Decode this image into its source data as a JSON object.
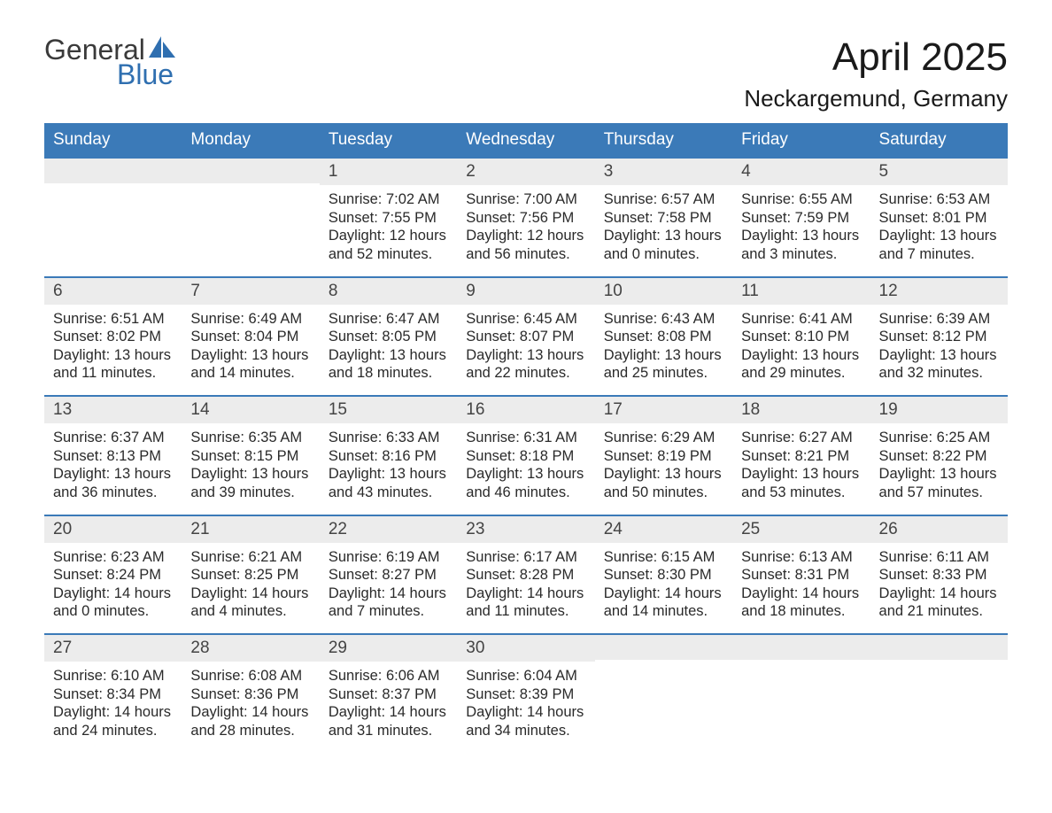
{
  "logo": {
    "top_text": "General",
    "bottom_text": "Blue",
    "icon_color": "#2f6fb0"
  },
  "title": "April 2025",
  "location": "Neckargemund, Germany",
  "colors": {
    "header_bg": "#3b7ab8",
    "header_text": "#ffffff",
    "daynum_bg": "#ececec",
    "row_border": "#3b7ab8",
    "text": "#2a2a2a",
    "background": "#ffffff"
  },
  "weekdays": [
    "Sunday",
    "Monday",
    "Tuesday",
    "Wednesday",
    "Thursday",
    "Friday",
    "Saturday"
  ],
  "weeks": [
    [
      {
        "day": "",
        "sunrise": "",
        "sunset": "",
        "daylight1": "",
        "daylight2": ""
      },
      {
        "day": "",
        "sunrise": "",
        "sunset": "",
        "daylight1": "",
        "daylight2": ""
      },
      {
        "day": "1",
        "sunrise": "Sunrise: 7:02 AM",
        "sunset": "Sunset: 7:55 PM",
        "daylight1": "Daylight: 12 hours",
        "daylight2": "and 52 minutes."
      },
      {
        "day": "2",
        "sunrise": "Sunrise: 7:00 AM",
        "sunset": "Sunset: 7:56 PM",
        "daylight1": "Daylight: 12 hours",
        "daylight2": "and 56 minutes."
      },
      {
        "day": "3",
        "sunrise": "Sunrise: 6:57 AM",
        "sunset": "Sunset: 7:58 PM",
        "daylight1": "Daylight: 13 hours",
        "daylight2": "and 0 minutes."
      },
      {
        "day": "4",
        "sunrise": "Sunrise: 6:55 AM",
        "sunset": "Sunset: 7:59 PM",
        "daylight1": "Daylight: 13 hours",
        "daylight2": "and 3 minutes."
      },
      {
        "day": "5",
        "sunrise": "Sunrise: 6:53 AM",
        "sunset": "Sunset: 8:01 PM",
        "daylight1": "Daylight: 13 hours",
        "daylight2": "and 7 minutes."
      }
    ],
    [
      {
        "day": "6",
        "sunrise": "Sunrise: 6:51 AM",
        "sunset": "Sunset: 8:02 PM",
        "daylight1": "Daylight: 13 hours",
        "daylight2": "and 11 minutes."
      },
      {
        "day": "7",
        "sunrise": "Sunrise: 6:49 AM",
        "sunset": "Sunset: 8:04 PM",
        "daylight1": "Daylight: 13 hours",
        "daylight2": "and 14 minutes."
      },
      {
        "day": "8",
        "sunrise": "Sunrise: 6:47 AM",
        "sunset": "Sunset: 8:05 PM",
        "daylight1": "Daylight: 13 hours",
        "daylight2": "and 18 minutes."
      },
      {
        "day": "9",
        "sunrise": "Sunrise: 6:45 AM",
        "sunset": "Sunset: 8:07 PM",
        "daylight1": "Daylight: 13 hours",
        "daylight2": "and 22 minutes."
      },
      {
        "day": "10",
        "sunrise": "Sunrise: 6:43 AM",
        "sunset": "Sunset: 8:08 PM",
        "daylight1": "Daylight: 13 hours",
        "daylight2": "and 25 minutes."
      },
      {
        "day": "11",
        "sunrise": "Sunrise: 6:41 AM",
        "sunset": "Sunset: 8:10 PM",
        "daylight1": "Daylight: 13 hours",
        "daylight2": "and 29 minutes."
      },
      {
        "day": "12",
        "sunrise": "Sunrise: 6:39 AM",
        "sunset": "Sunset: 8:12 PM",
        "daylight1": "Daylight: 13 hours",
        "daylight2": "and 32 minutes."
      }
    ],
    [
      {
        "day": "13",
        "sunrise": "Sunrise: 6:37 AM",
        "sunset": "Sunset: 8:13 PM",
        "daylight1": "Daylight: 13 hours",
        "daylight2": "and 36 minutes."
      },
      {
        "day": "14",
        "sunrise": "Sunrise: 6:35 AM",
        "sunset": "Sunset: 8:15 PM",
        "daylight1": "Daylight: 13 hours",
        "daylight2": "and 39 minutes."
      },
      {
        "day": "15",
        "sunrise": "Sunrise: 6:33 AM",
        "sunset": "Sunset: 8:16 PM",
        "daylight1": "Daylight: 13 hours",
        "daylight2": "and 43 minutes."
      },
      {
        "day": "16",
        "sunrise": "Sunrise: 6:31 AM",
        "sunset": "Sunset: 8:18 PM",
        "daylight1": "Daylight: 13 hours",
        "daylight2": "and 46 minutes."
      },
      {
        "day": "17",
        "sunrise": "Sunrise: 6:29 AM",
        "sunset": "Sunset: 8:19 PM",
        "daylight1": "Daylight: 13 hours",
        "daylight2": "and 50 minutes."
      },
      {
        "day": "18",
        "sunrise": "Sunrise: 6:27 AM",
        "sunset": "Sunset: 8:21 PM",
        "daylight1": "Daylight: 13 hours",
        "daylight2": "and 53 minutes."
      },
      {
        "day": "19",
        "sunrise": "Sunrise: 6:25 AM",
        "sunset": "Sunset: 8:22 PM",
        "daylight1": "Daylight: 13 hours",
        "daylight2": "and 57 minutes."
      }
    ],
    [
      {
        "day": "20",
        "sunrise": "Sunrise: 6:23 AM",
        "sunset": "Sunset: 8:24 PM",
        "daylight1": "Daylight: 14 hours",
        "daylight2": "and 0 minutes."
      },
      {
        "day": "21",
        "sunrise": "Sunrise: 6:21 AM",
        "sunset": "Sunset: 8:25 PM",
        "daylight1": "Daylight: 14 hours",
        "daylight2": "and 4 minutes."
      },
      {
        "day": "22",
        "sunrise": "Sunrise: 6:19 AM",
        "sunset": "Sunset: 8:27 PM",
        "daylight1": "Daylight: 14 hours",
        "daylight2": "and 7 minutes."
      },
      {
        "day": "23",
        "sunrise": "Sunrise: 6:17 AM",
        "sunset": "Sunset: 8:28 PM",
        "daylight1": "Daylight: 14 hours",
        "daylight2": "and 11 minutes."
      },
      {
        "day": "24",
        "sunrise": "Sunrise: 6:15 AM",
        "sunset": "Sunset: 8:30 PM",
        "daylight1": "Daylight: 14 hours",
        "daylight2": "and 14 minutes."
      },
      {
        "day": "25",
        "sunrise": "Sunrise: 6:13 AM",
        "sunset": "Sunset: 8:31 PM",
        "daylight1": "Daylight: 14 hours",
        "daylight2": "and 18 minutes."
      },
      {
        "day": "26",
        "sunrise": "Sunrise: 6:11 AM",
        "sunset": "Sunset: 8:33 PM",
        "daylight1": "Daylight: 14 hours",
        "daylight2": "and 21 minutes."
      }
    ],
    [
      {
        "day": "27",
        "sunrise": "Sunrise: 6:10 AM",
        "sunset": "Sunset: 8:34 PM",
        "daylight1": "Daylight: 14 hours",
        "daylight2": "and 24 minutes."
      },
      {
        "day": "28",
        "sunrise": "Sunrise: 6:08 AM",
        "sunset": "Sunset: 8:36 PM",
        "daylight1": "Daylight: 14 hours",
        "daylight2": "and 28 minutes."
      },
      {
        "day": "29",
        "sunrise": "Sunrise: 6:06 AM",
        "sunset": "Sunset: 8:37 PM",
        "daylight1": "Daylight: 14 hours",
        "daylight2": "and 31 minutes."
      },
      {
        "day": "30",
        "sunrise": "Sunrise: 6:04 AM",
        "sunset": "Sunset: 8:39 PM",
        "daylight1": "Daylight: 14 hours",
        "daylight2": "and 34 minutes."
      },
      {
        "day": "",
        "sunrise": "",
        "sunset": "",
        "daylight1": "",
        "daylight2": ""
      },
      {
        "day": "",
        "sunrise": "",
        "sunset": "",
        "daylight1": "",
        "daylight2": ""
      },
      {
        "day": "",
        "sunrise": "",
        "sunset": "",
        "daylight1": "",
        "daylight2": ""
      }
    ]
  ]
}
